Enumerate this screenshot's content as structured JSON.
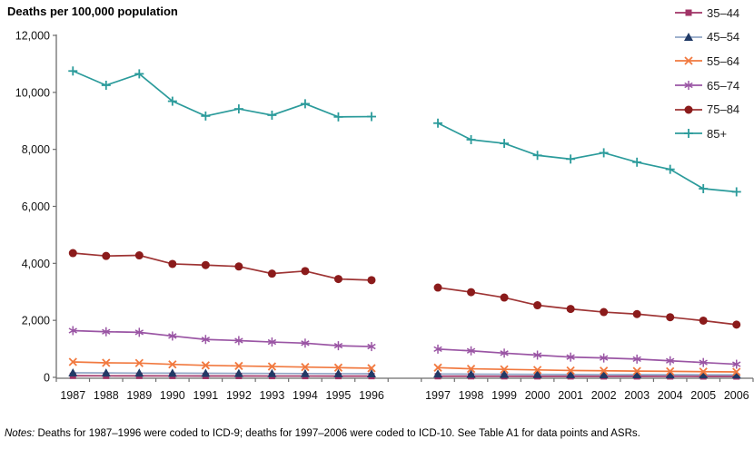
{
  "title": "Deaths per 100,000 population",
  "notes": {
    "label": "Notes:",
    "text": " Deaths for 1987–1996 were coded to ICD-9; deaths for 1997–2006 were coded to ICD-10. See Table A1 for data points and ASRs."
  },
  "colors": {
    "axis": "#6e6e6e",
    "tick_text": "#111111",
    "background": "#ffffff"
  },
  "chart_data": {
    "type": "line",
    "title": "Deaths per 100,000 population",
    "xlabel": "",
    "ylabel": "Deaths per 100,000 population",
    "ylim": [
      0,
      12000
    ],
    "yticks": [
      0,
      2000,
      4000,
      6000,
      8000,
      10000,
      12000
    ],
    "ytick_labels": [
      "0",
      "2,000",
      "4,000",
      "6,000",
      "8,000",
      "10,000",
      "12,000"
    ],
    "grid": false,
    "legend_position": "top-right",
    "axis_break": "one empty category slot between 1996 and 1997; series lines do not connect across the break",
    "segments": [
      {
        "years": [
          "1987",
          "1988",
          "1989",
          "1990",
          "1991",
          "1992",
          "1993",
          "1994",
          "1995",
          "1996"
        ]
      },
      {
        "years": [
          "1997",
          "1998",
          "1999",
          "2000",
          "2001",
          "2002",
          "2003",
          "2004",
          "2005",
          "2006"
        ]
      }
    ],
    "series": [
      {
        "name": "35–44",
        "marker": "square",
        "color": "#A03366",
        "line_color": "#A03366",
        "values": [
          [
            55,
            53,
            52,
            50,
            48,
            47,
            46,
            45,
            44,
            43
          ],
          [
            40,
            39,
            38,
            37,
            36,
            35,
            35,
            34,
            33,
            32
          ]
        ]
      },
      {
        "name": "45–54",
        "marker": "triangle",
        "color": "#213A66",
        "line_color": "#91A6C6",
        "values": [
          [
            160,
            155,
            150,
            147,
            143,
            140,
            137,
            134,
            130,
            127
          ],
          [
            118,
            113,
            108,
            104,
            100,
            97,
            95,
            92,
            90,
            88
          ]
        ]
      },
      {
        "name": "55–64",
        "marker": "x",
        "color": "#F1793F",
        "line_color": "#F1793F",
        "values": [
          [
            540,
            510,
            500,
            455,
            420,
            400,
            380,
            360,
            340,
            320
          ],
          [
            340,
            300,
            280,
            260,
            240,
            230,
            220,
            210,
            200,
            190
          ]
        ]
      },
      {
        "name": "65–74",
        "marker": "asterisk",
        "color": "#9A55A4",
        "line_color": "#9A55A4",
        "values": [
          [
            1640,
            1600,
            1580,
            1450,
            1330,
            1290,
            1240,
            1200,
            1110,
            1080
          ],
          [
            990,
            930,
            850,
            780,
            710,
            680,
            640,
            580,
            520,
            460
          ]
        ]
      },
      {
        "name": "75–84",
        "marker": "circle",
        "color": "#8B1B1B",
        "line_color": "#9E3434",
        "values": [
          [
            4360,
            4260,
            4280,
            3980,
            3940,
            3890,
            3640,
            3730,
            3450,
            3410
          ],
          [
            3150,
            2990,
            2800,
            2530,
            2400,
            2290,
            2220,
            2110,
            1990,
            1850
          ]
        ]
      },
      {
        "name": "85+",
        "marker": "plus",
        "color": "#2B9B9B",
        "line_color": "#2B9B9B",
        "values": [
          [
            10750,
            10250,
            10650,
            9690,
            9170,
            9420,
            9200,
            9600,
            9140,
            9150
          ],
          [
            8920,
            8340,
            8210,
            7790,
            7660,
            7880,
            7550,
            7300,
            6620,
            6510
          ]
        ]
      }
    ]
  }
}
